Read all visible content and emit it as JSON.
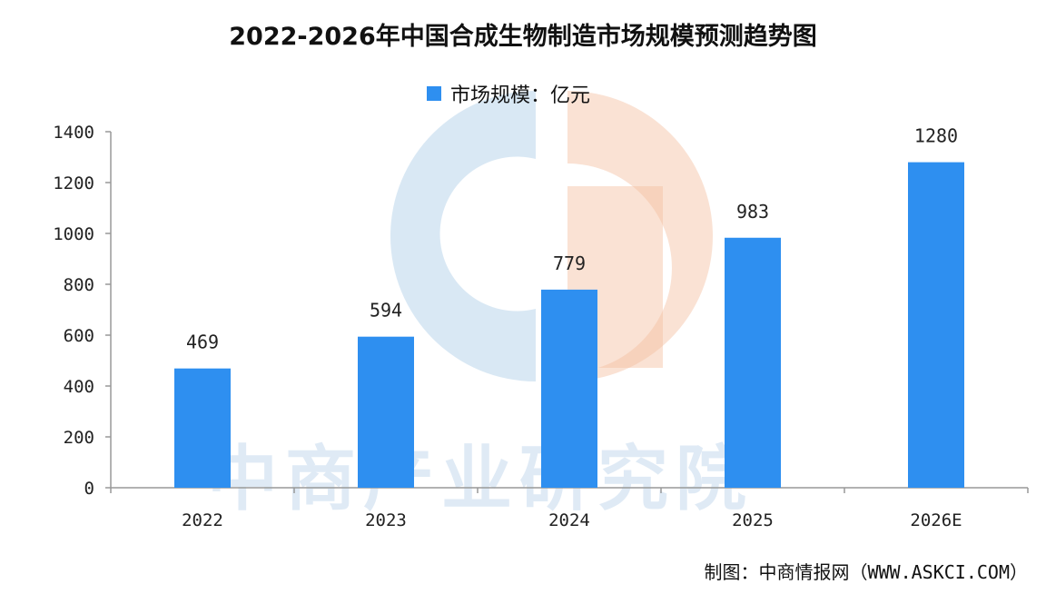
{
  "chart_data": {
    "type": "bar",
    "title": "2022-2026年中国合成生物制造市场规模预测趋势图",
    "legend": [
      "市场规模：亿元"
    ],
    "categories": [
      "2022",
      "2023",
      "2024",
      "2025",
      "2026E"
    ],
    "series": [
      {
        "name": "市场规模：亿元",
        "values": [
          469,
          594,
          779,
          983,
          1280
        ]
      }
    ],
    "ylim": [
      0,
      1400
    ],
    "yticks": [
      0,
      200,
      400,
      600,
      800,
      1000,
      1200,
      1400
    ],
    "bar_color": "#2e8ff0",
    "grid": false,
    "legend_position": "top-center"
  },
  "watermark": "中商产业研究院",
  "source": "制图：中商情报网（WWW.ASKCI.COM）"
}
